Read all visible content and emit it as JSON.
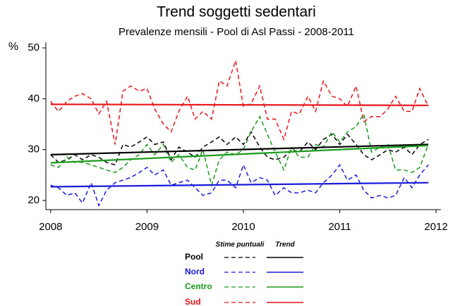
{
  "chart_data": {
    "type": "line",
    "title": "Trend soggetti sedentari",
    "subtitle": "Prevalenze mensili - Pool di Asl Passi - 2008-2011",
    "y_label": "%",
    "x": [
      2008,
      2008.08,
      2008.17,
      2008.25,
      2008.33,
      2008.42,
      2008.5,
      2008.58,
      2008.67,
      2008.75,
      2008.83,
      2008.92,
      2009,
      2009.08,
      2009.17,
      2009.25,
      2009.33,
      2009.42,
      2009.5,
      2009.58,
      2009.67,
      2009.75,
      2009.83,
      2009.92,
      2010,
      2010.08,
      2010.17,
      2010.25,
      2010.33,
      2010.42,
      2010.5,
      2010.58,
      2010.67,
      2010.75,
      2010.83,
      2010.92,
      2011,
      2011.08,
      2011.17,
      2011.25,
      2011.33,
      2011.42,
      2011.5,
      2011.58,
      2011.67,
      2011.75,
      2011.83,
      2011.92
    ],
    "trend_x": [
      2008,
      2011.92
    ],
    "xlim": [
      2007.95,
      2012.05
    ],
    "xticks": [
      2008,
      2009,
      2010,
      2011,
      2012
    ],
    "ylim": [
      18.2,
      50.7
    ],
    "yticks": [
      20,
      30,
      40,
      50
    ],
    "legend": {
      "headers": [
        "Stime puntuali",
        "Trend"
      ]
    },
    "series": [
      {
        "name": "Pool",
        "color": "#000000",
        "values": [
          29,
          27.5,
          28,
          29,
          28,
          29,
          28.5,
          27.5,
          27,
          31,
          30.5,
          31.5,
          32.5,
          31,
          31.5,
          28,
          30.5,
          29.5,
          28.5,
          30.5,
          31.5,
          32.5,
          31,
          32.5,
          31,
          33.5,
          30.5,
          28.5,
          28,
          28.5,
          30,
          29.5,
          31.5,
          30,
          32,
          33,
          31,
          33,
          31,
          29,
          28,
          29,
          30,
          29.5,
          30.5,
          29,
          31,
          32
        ],
        "trend": [
          29,
          31
        ]
      },
      {
        "name": "Nord",
        "color": "#1a1adc",
        "values": [
          23,
          22.5,
          21,
          21.5,
          19.5,
          23.5,
          19,
          22,
          23.5,
          24,
          24.5,
          25.5,
          26.5,
          25,
          26,
          23,
          23.5,
          24,
          22.5,
          21,
          21.5,
          24,
          24,
          22.5,
          27,
          23.5,
          24.5,
          24,
          21,
          22.5,
          21.5,
          21.5,
          22,
          21.5,
          23.5,
          25,
          27,
          24,
          25,
          22,
          20.5,
          21,
          20.5,
          21,
          24.5,
          22.5,
          25,
          27
        ],
        "trend": [
          22.7,
          23.5
        ]
      },
      {
        "name": "Centro",
        "color": "#1a9a1a",
        "values": [
          27,
          26.5,
          28.5,
          27.5,
          27.5,
          27,
          26.5,
          26,
          25.5,
          26.5,
          28,
          29,
          31,
          29,
          31,
          27.5,
          29,
          26.5,
          26,
          30,
          23,
          28,
          29.5,
          29,
          30,
          33.5,
          36.5,
          33,
          29.5,
          26,
          30.5,
          28.5,
          28.5,
          31,
          30.5,
          33.5,
          31.5,
          33.5,
          34.5,
          37,
          29.5,
          30.5,
          31,
          26,
          26,
          25.5,
          26.5,
          31
        ],
        "trend": [
          27.4,
          30.8
        ]
      },
      {
        "name": "Sud",
        "color": "#e8141a",
        "values": [
          39.5,
          37.5,
          39.5,
          40.5,
          41,
          40,
          37,
          39.5,
          31,
          41.5,
          42.5,
          41.5,
          42,
          38,
          35,
          33.5,
          37.5,
          40.5,
          36,
          37.5,
          36,
          43.5,
          42.5,
          47.5,
          38.5,
          39,
          42.5,
          36,
          36,
          32,
          37.5,
          37,
          40.5,
          37.5,
          43.5,
          40.5,
          40,
          38.5,
          42.5,
          35.5,
          36.5,
          36.5,
          38,
          40.5,
          37.5,
          37.5,
          42,
          38.5
        ],
        "trend": [
          38.9,
          38.7
        ]
      }
    ]
  }
}
